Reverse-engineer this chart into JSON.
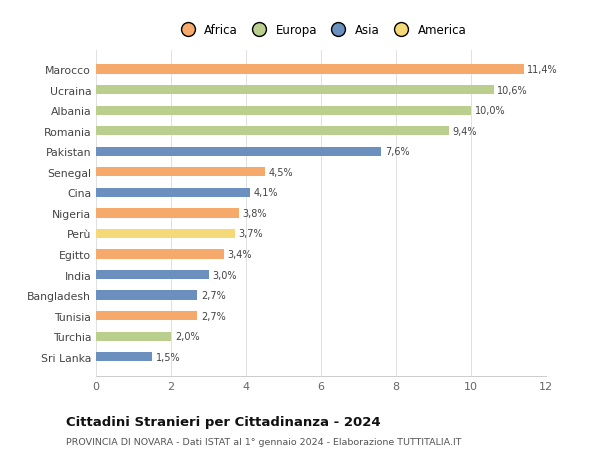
{
  "countries": [
    "Marocco",
    "Ucraina",
    "Albania",
    "Romania",
    "Pakistan",
    "Senegal",
    "Cina",
    "Nigeria",
    "Perù",
    "Egitto",
    "India",
    "Bangladesh",
    "Tunisia",
    "Turchia",
    "Sri Lanka"
  ],
  "values": [
    11.4,
    10.6,
    10.0,
    9.4,
    7.6,
    4.5,
    4.1,
    3.8,
    3.7,
    3.4,
    3.0,
    2.7,
    2.7,
    2.0,
    1.5
  ],
  "labels": [
    "11,4%",
    "10,6%",
    "10,0%",
    "9,4%",
    "7,6%",
    "4,5%",
    "4,1%",
    "3,8%",
    "3,7%",
    "3,4%",
    "3,0%",
    "2,7%",
    "2,7%",
    "2,0%",
    "1,5%"
  ],
  "continents": [
    "Africa",
    "Europa",
    "Europa",
    "Europa",
    "Asia",
    "Africa",
    "Asia",
    "Africa",
    "America",
    "Africa",
    "Asia",
    "Asia",
    "Africa",
    "Europa",
    "Asia"
  ],
  "colors": {
    "Africa": "#F5A96A",
    "Europa": "#BACF8E",
    "Asia": "#6B8FBF",
    "America": "#F5D878"
  },
  "legend_order": [
    "Africa",
    "Europa",
    "Asia",
    "America"
  ],
  "legend_colors": [
    "#F5A96A",
    "#BACF8E",
    "#6B8FBF",
    "#F5D878"
  ],
  "title": "Cittadini Stranieri per Cittadinanza - 2024",
  "subtitle": "PROVINCIA DI NOVARA - Dati ISTAT al 1° gennaio 2024 - Elaborazione TUTTITALIA.IT",
  "xlim": [
    0,
    12
  ],
  "xticks": [
    0,
    2,
    4,
    6,
    8,
    10,
    12
  ],
  "bg_color": "#ffffff",
  "bar_height": 0.45
}
